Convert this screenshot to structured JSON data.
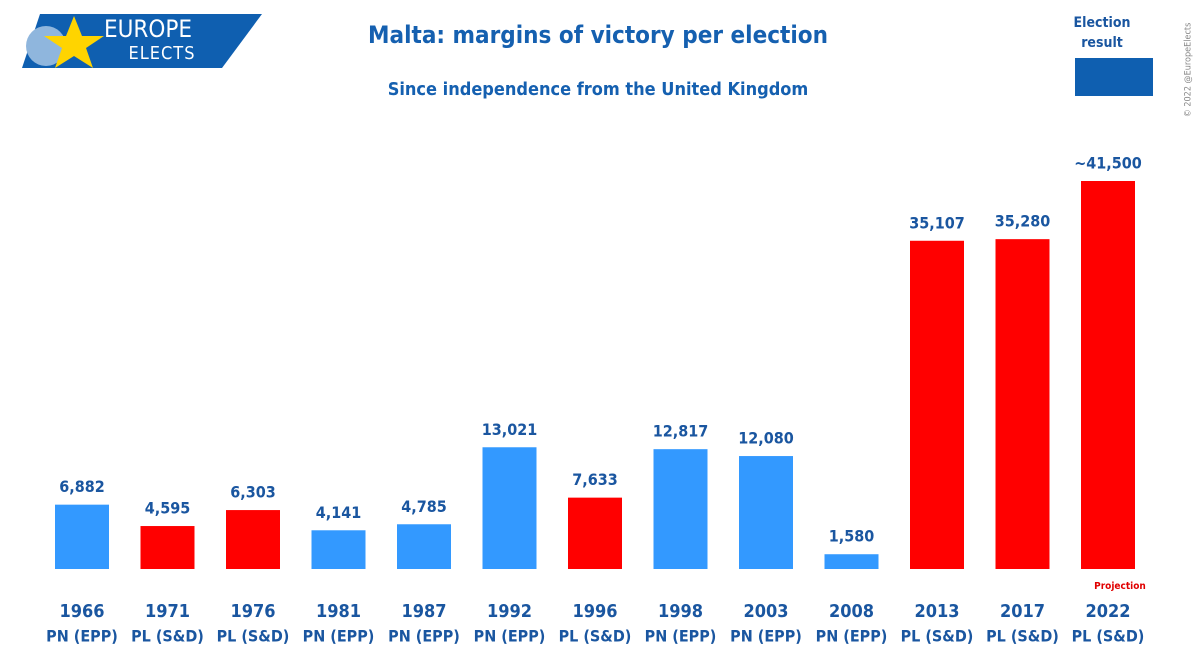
{
  "chart_data": {
    "type": "bar",
    "title": "Malta: margins of victory per election",
    "subtitle": "Since independence from the United Kingdom",
    "logo_top": "EUROPE",
    "logo_bottom": "ELECTS",
    "legend_label": "Election result",
    "legend_color": "#0f5fb0",
    "copyright": "© 2022 @EuropeElects",
    "annotation": "Projection",
    "categories": [
      "1966",
      "1971",
      "1976",
      "1981",
      "1987",
      "1992",
      "1996",
      "1998",
      "2003",
      "2008",
      "2013",
      "2017",
      "2022"
    ],
    "parties": [
      "PN (EPP)",
      "PL (S&D)",
      "PL (S&D)",
      "PN (EPP)",
      "PN (EPP)",
      "PN (EPP)",
      "PL (S&D)",
      "PN (EPP)",
      "PN (EPP)",
      "PN (EPP)",
      "PL (S&D)",
      "PL (S&D)",
      "PL (S&D)"
    ],
    "values": [
      6882,
      4595,
      6303,
      4141,
      4785,
      13021,
      7633,
      12817,
      12080,
      1580,
      35107,
      35280,
      41500
    ],
    "value_labels": [
      "6,882",
      "4,595",
      "6,303",
      "4,141",
      "4,785",
      "13,021",
      "7,633",
      "12,817",
      "12,080",
      "1,580",
      "35,107",
      "35,280",
      "~41,500"
    ],
    "colors": [
      "#3399ff",
      "#ff0000",
      "#ff0000",
      "#3399ff",
      "#3399ff",
      "#3399ff",
      "#ff0000",
      "#3399ff",
      "#3399ff",
      "#3399ff",
      "#ff0000",
      "#ff0000",
      "#ff0000"
    ]
  }
}
